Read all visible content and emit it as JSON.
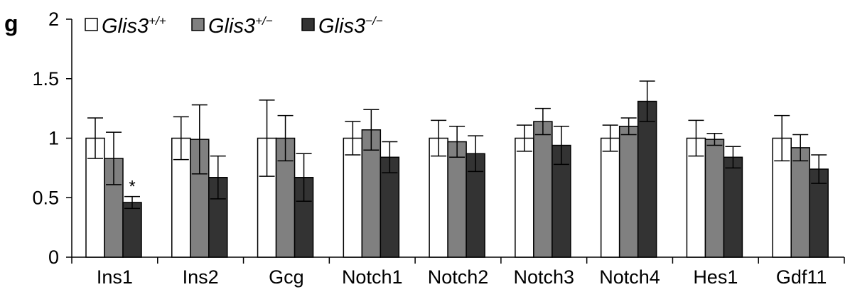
{
  "panel_label": "g",
  "chart_data": {
    "type": "bar",
    "title": "",
    "xlabel": "",
    "ylabel": "",
    "ylim": [
      0,
      2
    ],
    "yticks": [
      "0",
      "0.5",
      "1",
      "1.5",
      "2"
    ],
    "categories": [
      "Ins1",
      "Ins2",
      "Gcg",
      "Notch1",
      "Notch2",
      "Notch3",
      "Notch4",
      "Hes1",
      "Gdf11"
    ],
    "series": [
      {
        "name": "Glis3+/+",
        "gene": "Glis3",
        "genotype": "+/+",
        "color": "#ffffff",
        "values": [
          1.0,
          1.0,
          1.0,
          1.0,
          1.0,
          1.0,
          1.0,
          1.0,
          1.0
        ],
        "errors": [
          0.17,
          0.18,
          0.32,
          0.14,
          0.15,
          0.11,
          0.11,
          0.15,
          0.19
        ]
      },
      {
        "name": "Glis3+/−",
        "gene": "Glis3",
        "genotype": "+/−",
        "color": "#808080",
        "values": [
          0.83,
          0.99,
          1.0,
          1.07,
          0.97,
          1.14,
          1.1,
          0.99,
          0.92
        ],
        "errors": [
          0.22,
          0.29,
          0.19,
          0.17,
          0.13,
          0.11,
          0.07,
          0.05,
          0.11
        ]
      },
      {
        "name": "Glis3−/−",
        "gene": "Glis3",
        "genotype": "−/−",
        "color": "#333333",
        "values": [
          0.46,
          0.67,
          0.67,
          0.84,
          0.87,
          0.94,
          1.31,
          0.84,
          0.74
        ],
        "errors": [
          0.05,
          0.18,
          0.2,
          0.13,
          0.15,
          0.16,
          0.17,
          0.09,
          0.12
        ]
      }
    ],
    "annotations": [
      {
        "category": "Ins1",
        "series": 2,
        "text": "*"
      }
    ],
    "legend_position": "top-left",
    "grid": false
  }
}
